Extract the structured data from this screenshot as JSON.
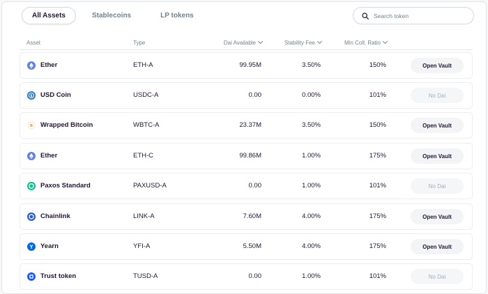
{
  "tabs": [
    {
      "label": "All Assets",
      "active": true
    },
    {
      "label": "Stablecoins",
      "active": false
    },
    {
      "label": "LP tokens",
      "active": false
    }
  ],
  "search": {
    "placeholder": "Search token",
    "icon": "search-icon"
  },
  "table": {
    "headers": {
      "asset": "Asset",
      "type": "Type",
      "dai_available": "Dai Available",
      "stability_fee": "Stability Fee",
      "min_coll_ratio": "Min Coll. Ratio"
    },
    "rows": [
      {
        "name": "Ether",
        "type": "ETH-A",
        "dai_available": "99.95M",
        "stability_fee": "3.50%",
        "min_coll_ratio": "150%",
        "action": "Open Vault",
        "enabled": true,
        "icon": "ether-icon",
        "color": "#627eea"
      },
      {
        "name": "USD Coin",
        "type": "USDC-A",
        "dai_available": "0.00",
        "stability_fee": "0.00%",
        "min_coll_ratio": "101%",
        "action": "No Dai",
        "enabled": false,
        "icon": "usd-coin-icon",
        "color": "#2775ca"
      },
      {
        "name": "Wrapped Bitcoin",
        "type": "WBTC-A",
        "dai_available": "23.37M",
        "stability_fee": "3.50%",
        "min_coll_ratio": "150%",
        "action": "Open Vault",
        "enabled": true,
        "icon": "wrapped-bitcoin-icon",
        "color": "#f09242"
      },
      {
        "name": "Ether",
        "type": "ETH-C",
        "dai_available": "99.86M",
        "stability_fee": "1.00%",
        "min_coll_ratio": "175%",
        "action": "Open Vault",
        "enabled": true,
        "icon": "ether-icon",
        "color": "#627eea"
      },
      {
        "name": "Paxos Standard",
        "type": "PAXUSD-A",
        "dai_available": "0.00",
        "stability_fee": "1.00%",
        "min_coll_ratio": "101%",
        "action": "No Dai",
        "enabled": false,
        "icon": "paxos-icon",
        "color": "#00c28c"
      },
      {
        "name": "Chainlink",
        "type": "LINK-A",
        "dai_available": "7.60M",
        "stability_fee": "4.00%",
        "min_coll_ratio": "175%",
        "action": "Open Vault",
        "enabled": true,
        "icon": "chainlink-icon",
        "color": "#2a5ada"
      },
      {
        "name": "Yearn",
        "type": "YFI-A",
        "dai_available": "5.50M",
        "stability_fee": "4.00%",
        "min_coll_ratio": "175%",
        "action": "Open Vault",
        "enabled": true,
        "icon": "yearn-icon",
        "color": "#006ae3"
      },
      {
        "name": "Trust token",
        "type": "TUSD-A",
        "dai_available": "0.00",
        "stability_fee": "1.00%",
        "min_coll_ratio": "101%",
        "action": "No Dai",
        "enabled": false,
        "icon": "trust-token-icon",
        "color": "#1a5aff"
      }
    ]
  }
}
